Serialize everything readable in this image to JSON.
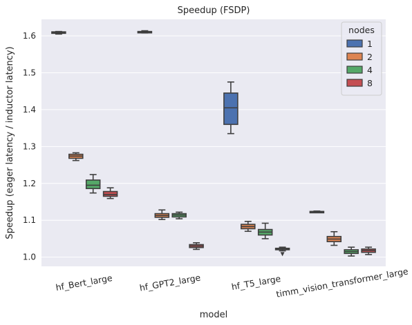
{
  "chart_data": {
    "type": "box",
    "title": "Speedup (FSDP)",
    "xlabel": "model",
    "ylabel": "Speedup (eager latency / inductor latency)",
    "categories": [
      "hf_Bert_large",
      "hf_GPT2_large",
      "hf_T5_large",
      "timm_vision_transformer_large"
    ],
    "ylim": [
      0.975,
      1.645
    ],
    "yticks": [
      1.0,
      1.1,
      1.2,
      1.3,
      1.4,
      1.5,
      1.6
    ],
    "ytick_labels": [
      "1.0",
      "1.1",
      "1.2",
      "1.3",
      "1.4",
      "1.5",
      "1.6"
    ],
    "grid": true,
    "legend": {
      "title": "nodes",
      "placement": "top-right"
    },
    "colors": {
      "plot_bg": "#eaeaf2",
      "grid": "#ffffff",
      "box_edge": "#3f3f3f",
      "text": "#262626"
    },
    "series": [
      {
        "name": "1",
        "color": "#4c72b0",
        "boxes": [
          {
            "category": "hf_Bert_large",
            "whislo": 1.605,
            "q1": 1.607,
            "med": 1.609,
            "q3": 1.611,
            "whishi": 1.612
          },
          {
            "category": "hf_GPT2_large",
            "whislo": 1.608,
            "q1": 1.609,
            "med": 1.611,
            "q3": 1.612,
            "whishi": 1.614
          },
          {
            "category": "hf_T5_large",
            "whislo": 1.335,
            "q1": 1.36,
            "med": 1.405,
            "q3": 1.445,
            "whishi": 1.475
          },
          {
            "category": "timm_vision_transformer_large",
            "whislo": 1.121,
            "q1": 1.122,
            "med": 1.123,
            "q3": 1.124,
            "whishi": 1.125
          }
        ]
      },
      {
        "name": "2",
        "color": "#dd8452",
        "boxes": [
          {
            "category": "hf_Bert_large",
            "whislo": 1.262,
            "q1": 1.268,
            "med": 1.274,
            "q3": 1.279,
            "whishi": 1.283
          },
          {
            "category": "hf_GPT2_large",
            "whislo": 1.102,
            "q1": 1.108,
            "med": 1.113,
            "q3": 1.118,
            "whishi": 1.128
          },
          {
            "category": "hf_T5_large",
            "whislo": 1.07,
            "q1": 1.077,
            "med": 1.083,
            "q3": 1.089,
            "whishi": 1.097
          },
          {
            "category": "timm_vision_transformer_large",
            "whislo": 1.032,
            "q1": 1.042,
            "med": 1.049,
            "q3": 1.056,
            "whishi": 1.069
          }
        ]
      },
      {
        "name": "4",
        "color": "#55a868",
        "boxes": [
          {
            "category": "hf_Bert_large",
            "whislo": 1.174,
            "q1": 1.186,
            "med": 1.195,
            "q3": 1.209,
            "whishi": 1.224
          },
          {
            "category": "hf_GPT2_large",
            "whislo": 1.104,
            "q1": 1.109,
            "med": 1.114,
            "q3": 1.118,
            "whishi": 1.122
          },
          {
            "category": "hf_T5_large",
            "whislo": 1.05,
            "q1": 1.06,
            "med": 1.068,
            "q3": 1.075,
            "whishi": 1.092
          },
          {
            "category": "timm_vision_transformer_large",
            "whislo": 1.003,
            "q1": 1.01,
            "med": 1.015,
            "q3": 1.02,
            "whishi": 1.027
          }
        ]
      },
      {
        "name": "8",
        "color": "#c44e52",
        "boxes": [
          {
            "category": "hf_Bert_large",
            "whislo": 1.159,
            "q1": 1.165,
            "med": 1.17,
            "q3": 1.178,
            "whishi": 1.188,
            "fliers": []
          },
          {
            "category": "hf_GPT2_large",
            "whislo": 1.021,
            "q1": 1.026,
            "med": 1.03,
            "q3": 1.034,
            "whishi": 1.039
          },
          {
            "category": "hf_T5_large",
            "whislo": 1.017,
            "q1": 1.02,
            "med": 1.022,
            "q3": 1.024,
            "whishi": 1.027,
            "fliers": [
              1.008
            ]
          },
          {
            "category": "timm_vision_transformer_large",
            "whislo": 1.007,
            "q1": 1.013,
            "med": 1.018,
            "q3": 1.022,
            "whishi": 1.027
          }
        ]
      }
    ]
  }
}
